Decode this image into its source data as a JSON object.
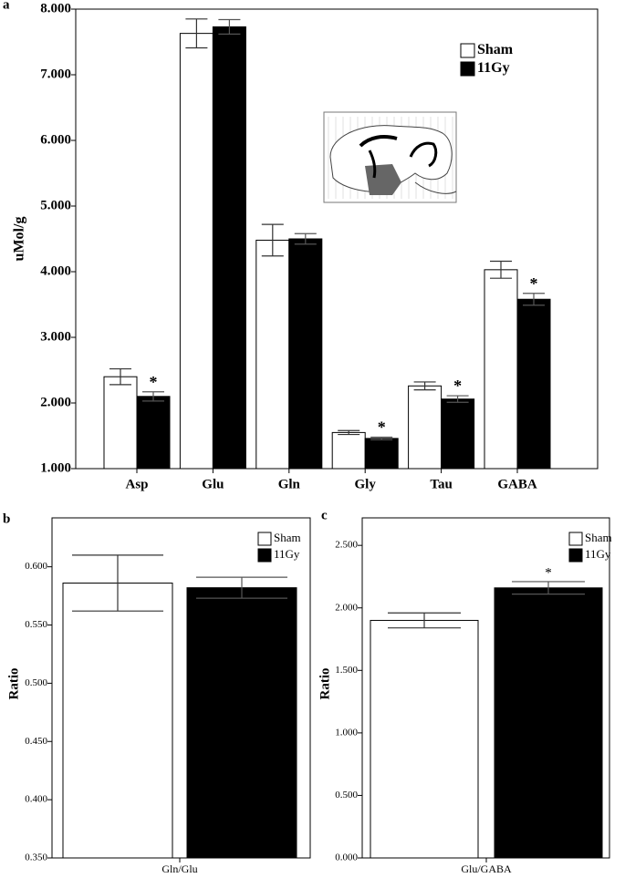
{
  "chart_data": [
    {
      "type": "bar",
      "panel_label": "a",
      "ylabel": "uMol/g",
      "categories": [
        "Asp",
        "Glu",
        "Gln",
        "Gly",
        "Tau",
        "GABA"
      ],
      "series": [
        {
          "name": "Sham",
          "color": "#ffffff",
          "values": [
            2.4,
            7.63,
            4.48,
            1.55,
            2.26,
            4.03
          ],
          "errors": [
            0.12,
            0.22,
            0.24,
            0.03,
            0.06,
            0.13
          ]
        },
        {
          "name": "11Gy",
          "color": "#000000",
          "values": [
            2.1,
            7.73,
            4.5,
            1.46,
            2.06,
            3.58
          ],
          "errors": [
            0.07,
            0.11,
            0.08,
            0.02,
            0.05,
            0.09
          ],
          "significance": [
            "*",
            null,
            null,
            "*",
            "*",
            "*"
          ]
        }
      ],
      "ylim": [
        1,
        8
      ],
      "yticks": [
        {
          "value": 1,
          "label": "1.000"
        },
        {
          "value": 2,
          "label": "2.000"
        },
        {
          "value": 3,
          "label": "3.000"
        },
        {
          "value": 4,
          "label": "4.000"
        },
        {
          "value": 5,
          "label": "5.000"
        },
        {
          "value": 6,
          "label": "6.000"
        },
        {
          "value": 7,
          "label": "7.000"
        },
        {
          "value": 8,
          "label": "8.000"
        }
      ],
      "legend": "top-right"
    },
    {
      "type": "bar",
      "panel_label": "b",
      "ylabel": "Ratio",
      "categories": [
        "Gln/Glu"
      ],
      "series": [
        {
          "name": "Sham",
          "color": "#ffffff",
          "values": [
            0.586
          ],
          "errors": [
            0.024
          ]
        },
        {
          "name": "11Gy",
          "color": "#000000",
          "values": [
            0.582
          ],
          "errors": [
            0.009
          ]
        }
      ],
      "ylim": [
        0.35,
        0.642
      ],
      "yticks": [
        {
          "value": 0.35,
          "label": "0.350"
        },
        {
          "value": 0.4,
          "label": "0.400"
        },
        {
          "value": 0.45,
          "label": "0.450"
        },
        {
          "value": 0.5,
          "label": "0.500"
        },
        {
          "value": 0.55,
          "label": "0.550"
        },
        {
          "value": 0.6,
          "label": "0.600"
        }
      ],
      "legend": "top-right"
    },
    {
      "type": "bar",
      "panel_label": "c",
      "ylabel": "Ratio",
      "categories": [
        "Glu/GABA"
      ],
      "series": [
        {
          "name": "Sham",
          "color": "#ffffff",
          "values": [
            1.9
          ],
          "errors": [
            0.06
          ]
        },
        {
          "name": "11Gy",
          "color": "#000000",
          "values": [
            2.16
          ],
          "errors": [
            0.05
          ],
          "significance": [
            "*"
          ]
        }
      ],
      "ylim": [
        0,
        2.72
      ],
      "yticks": [
        {
          "value": 0,
          "label": "0.000"
        },
        {
          "value": 0.5,
          "label": "0.500"
        },
        {
          "value": 1,
          "label": "1.000"
        },
        {
          "value": 1.5,
          "label": "1.500"
        },
        {
          "value": 2,
          "label": "2.000"
        },
        {
          "value": 2.5,
          "label": "2.500"
        }
      ],
      "legend": "top-right"
    }
  ]
}
